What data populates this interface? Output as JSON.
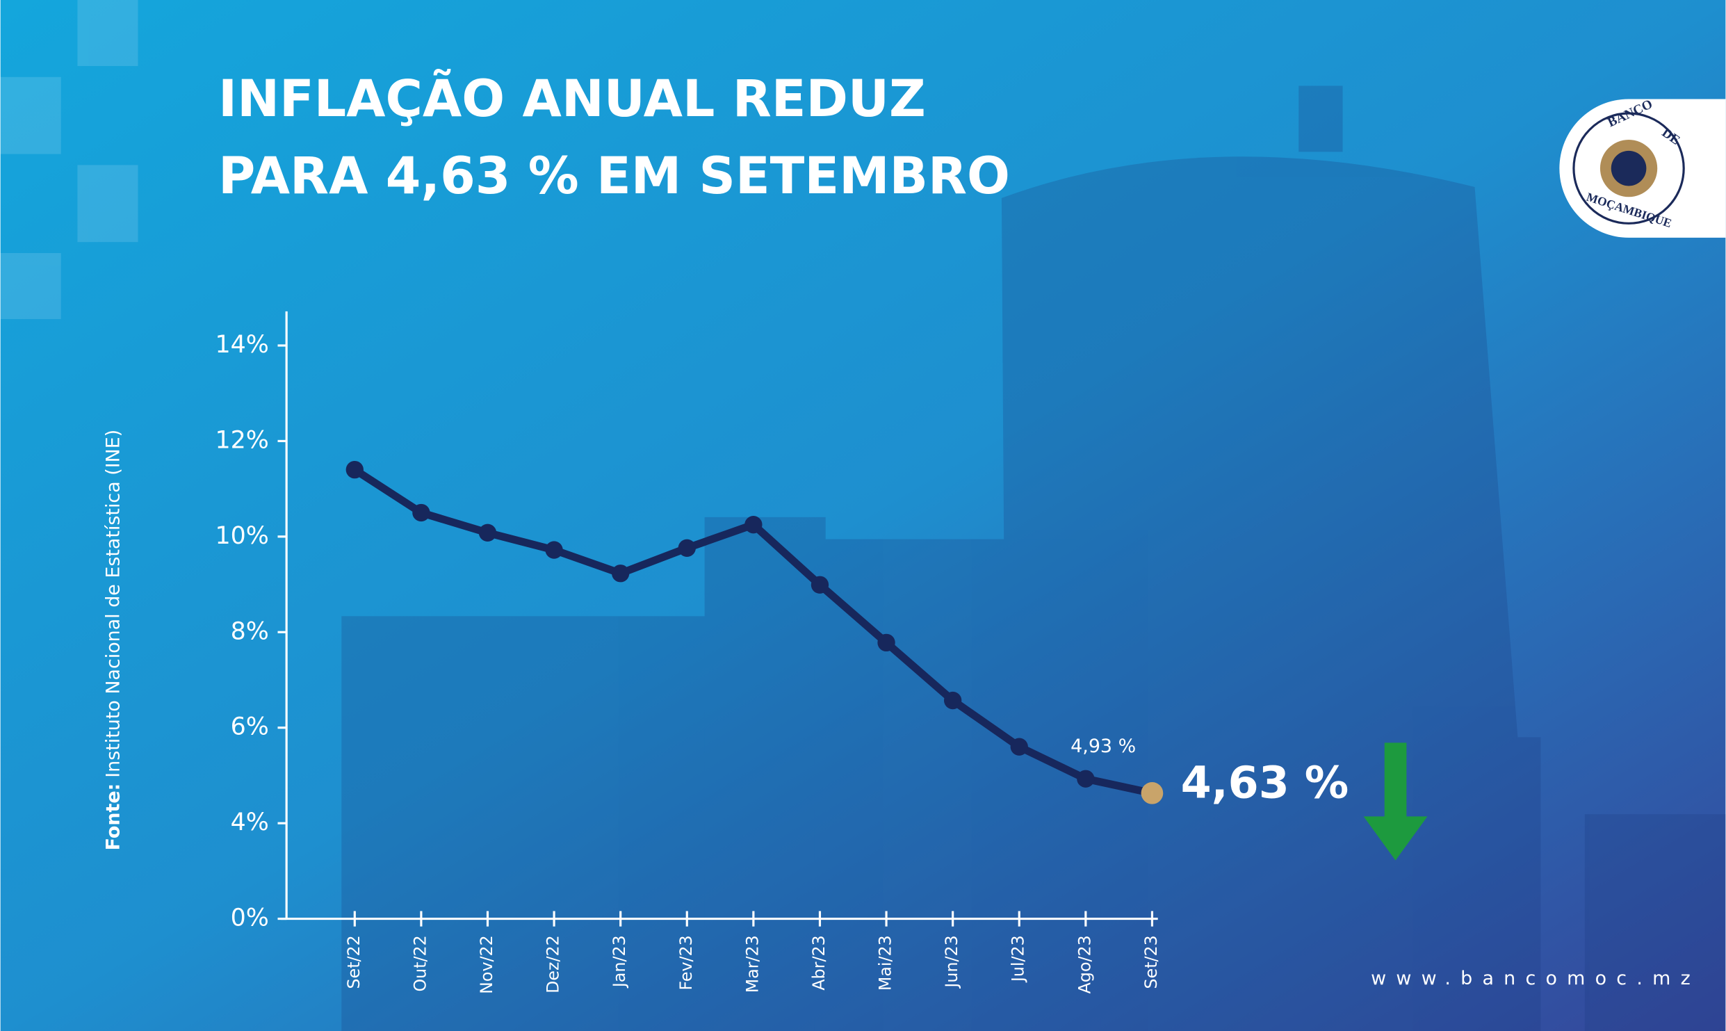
{
  "chart_data": {
    "type": "line",
    "title": [
      "INFLAÇÃO ANUAL REDUZ",
      "PARA 4,63 % EM SETEMBRO"
    ],
    "source_label": "Fonte:",
    "source": "Instituto Nacional de Estatística (INE)",
    "categories": [
      "Set/22",
      "Out/22",
      "Nov/22",
      "Dez/22",
      "Jan/23",
      "Fev/23",
      "Mar/23",
      "Abr/23",
      "Mai/23",
      "Jun/23",
      "Jul/23",
      "Ago/23",
      "Set/23"
    ],
    "values": [
      11.4,
      10.5,
      10.08,
      9.72,
      9.23,
      9.76,
      10.25,
      8.99,
      7.78,
      6.57,
      5.6,
      4.93,
      4.63
    ],
    "value_labels": [
      null,
      null,
      null,
      null,
      null,
      null,
      null,
      null,
      null,
      null,
      null,
      "4,93 %",
      "4,63 %"
    ],
    "color": "#17275c",
    "highlight_color": "#c9a46a",
    "ylim": [
      0,
      14
    ],
    "yticks": [
      {
        "value": 0,
        "label": "0%"
      },
      {
        "value": 4,
        "label": "4%"
      },
      {
        "value": 6,
        "label": "6%"
      },
      {
        "value": 8,
        "label": "8%"
      },
      {
        "value": 10,
        "label": "10%"
      },
      {
        "value": 12,
        "label": "12%"
      },
      {
        "value": 14,
        "label": "14%"
      }
    ],
    "logo": [
      "BANCO",
      "DE",
      "MOÇAMBIQUE"
    ],
    "website": "www.bancomoc.mz"
  }
}
